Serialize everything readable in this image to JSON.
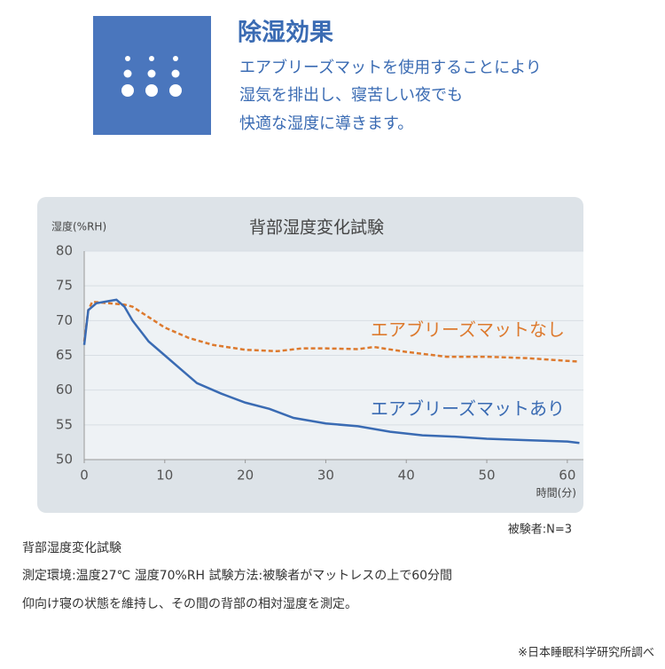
{
  "header": {
    "title": "除湿効果",
    "lines": [
      "エアブリーズマットを使用することにより",
      "湿気を排出し、寝苦しい夜でも",
      "快適な湿度に導きます。"
    ]
  },
  "chart_data": {
    "type": "line",
    "title": "背部湿度変化試験",
    "y_label": "湿度(%RH)",
    "x_label": "時間(分)",
    "xlim": [
      0,
      62
    ],
    "xticks": [
      0,
      10,
      20,
      30,
      40,
      50,
      60
    ],
    "ylim": [
      50,
      80
    ],
    "yticks": [
      50,
      55,
      60,
      65,
      70,
      75,
      80
    ],
    "grid": true,
    "series": [
      {
        "name": "エアブリーズマットなし",
        "color": "#dd7a2e",
        "linestyle": "dashed",
        "x": [
          0,
          0.5,
          1,
          2,
          3,
          4,
          5,
          6,
          8,
          10,
          13,
          16,
          20,
          24,
          27,
          30,
          34,
          36,
          40,
          45,
          50,
          55,
          60,
          61.5
        ],
        "values": [
          67,
          71.5,
          72.7,
          72.6,
          72.5,
          72.4,
          72.3,
          72,
          70.5,
          69,
          67.5,
          66.5,
          65.8,
          65.6,
          66,
          66,
          65.9,
          66.2,
          65.5,
          64.8,
          64.8,
          64.6,
          64.2,
          64.1
        ]
      },
      {
        "name": "エアブリーズマットあり",
        "color": "#3a6bb3",
        "linestyle": "solid",
        "x": [
          0,
          0.5,
          1.5,
          3,
          4,
          5,
          6,
          8,
          10,
          12,
          14,
          17,
          20,
          23,
          26,
          30,
          34,
          38,
          42,
          46,
          50,
          55,
          60,
          61.5
        ],
        "values": [
          66.5,
          71.5,
          72.5,
          72.8,
          73,
          72,
          70,
          67,
          65,
          63,
          61,
          59.5,
          58.2,
          57.3,
          56,
          55.2,
          54.8,
          54,
          53.5,
          53.3,
          53,
          52.8,
          52.6,
          52.4
        ]
      }
    ]
  },
  "notes": {
    "subjects": "被験者:N=3",
    "lines": [
      "背部湿度変化試験",
      "測定環境:温度27℃ 湿度70%RH 試験方法:被験者がマットレスの上で60分間",
      "仰向け寝の状態を維持し、その間の背部の相対湿度を測定。"
    ],
    "credit": "※日本睡眠科学研究所調べ"
  }
}
